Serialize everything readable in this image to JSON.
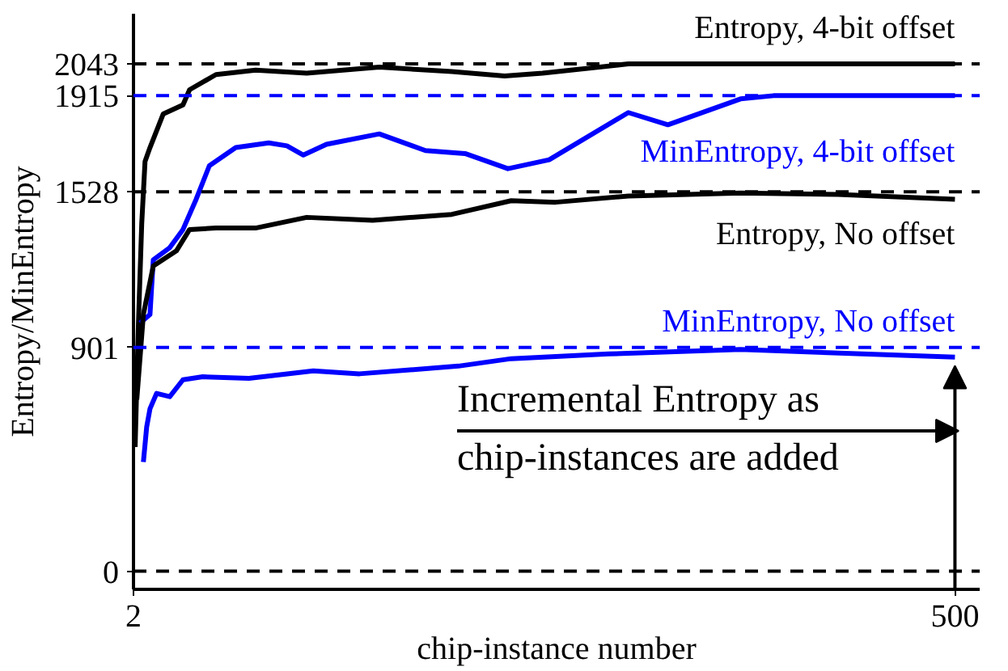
{
  "chart_data": {
    "type": "line",
    "xlabel": "chip-instance number",
    "ylabel": "Entropy/MinEntropy",
    "xlim": [
      2,
      515
    ],
    "ylim": [
      -73,
      2245
    ],
    "xticks": [
      2,
      500
    ],
    "yticks": [
      0,
      901,
      1528,
      1915,
      2043
    ],
    "grid": false,
    "marker": "none",
    "line_style": "solid",
    "series": [
      {
        "name": "Entropy, 4-bit offset",
        "color": "#000000",
        "x": [
          3,
          5,
          7,
          9,
          12,
          20,
          32,
          36,
          52,
          76,
          107,
          151,
          195,
          227,
          250,
          302,
          370,
          500
        ],
        "values": [
          500,
          1000,
          1400,
          1650,
          1706,
          1841,
          1878,
          1939,
          2000,
          2018,
          2006,
          2030,
          2012,
          1994,
          2006,
          2043,
          2043,
          2043
        ]
      },
      {
        "name": "MinEntropy, 4-bit offset",
        "color": "#0000ff",
        "x": [
          6,
          12,
          14,
          24,
          32,
          40,
          48,
          64,
          84,
          95,
          105,
          119,
          151,
          179,
          203,
          229,
          254,
          302,
          326,
          370,
          390,
          500
        ],
        "values": [
          1000,
          1034,
          1254,
          1303,
          1376,
          1498,
          1633,
          1706,
          1725,
          1713,
          1676,
          1719,
          1761,
          1694,
          1682,
          1621,
          1657,
          1847,
          1798,
          1902,
          1915,
          1915
        ]
      },
      {
        "name": "Entropy, No offset",
        "color": "#000000",
        "x": [
          4,
          6,
          8,
          14,
          28,
          36,
          52,
          76,
          107,
          147,
          195,
          231,
          258,
          302,
          370,
          429,
          500
        ],
        "values": [
          691,
          862,
          1034,
          1229,
          1290,
          1376,
          1382,
          1382,
          1425,
          1413,
          1437,
          1492,
          1486,
          1511,
          1523,
          1517,
          1498
        ]
      },
      {
        "name": "MinEntropy, No offset",
        "color": "#0000ff",
        "x": [
          8,
          10,
          12,
          16,
          24,
          32,
          44,
          72,
          111,
          139,
          199,
          231,
          290,
          370,
          500
        ],
        "values": [
          440,
          581,
          654,
          716,
          703,
          771,
          783,
          777,
          807,
          795,
          826,
          856,
          875,
          893,
          862
        ]
      }
    ],
    "ref_lines": [
      {
        "axis": "y",
        "value": 0,
        "color": "#000000",
        "line_style": "dashed"
      },
      {
        "axis": "y",
        "value": 901,
        "color": "#0000ff",
        "line_style": "dashed"
      },
      {
        "axis": "y",
        "value": 1528,
        "color": "#000000",
        "line_style": "dashed"
      },
      {
        "axis": "y",
        "value": 1915,
        "color": "#0000ff",
        "line_style": "dashed"
      },
      {
        "axis": "y",
        "value": 2043,
        "color": "#000000",
        "line_style": "dashed"
      }
    ],
    "annotations": [
      "Incremental Entropy as",
      "chip-instances are added"
    ]
  }
}
